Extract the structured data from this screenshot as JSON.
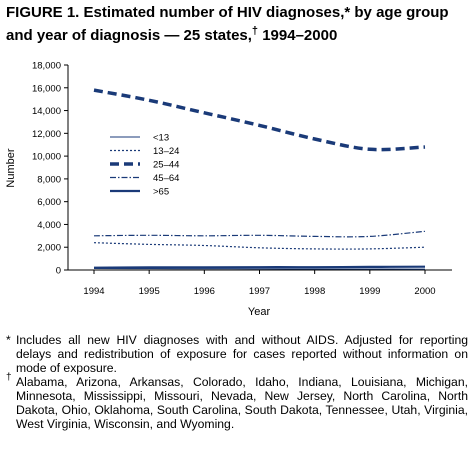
{
  "figure": {
    "title_line1": "FIGURE 1. Estimated number of HIV diagnoses,* by age group",
    "title_line2_a": "and year of diagnosis — 25 states,",
    "title_line2_dagger": "†",
    "title_line2_b": " 1994–2000"
  },
  "chart_data": {
    "type": "line",
    "x": [
      1994,
      1995,
      1996,
      1997,
      1998,
      1999,
      2000
    ],
    "xlabel": "Year",
    "ylabel": "Number",
    "ylim": [
      0,
      18000
    ],
    "yticks": [
      0,
      2000,
      4000,
      6000,
      8000,
      10000,
      12000,
      14000,
      16000,
      18000
    ],
    "ytick_labels": [
      "0",
      "2,000",
      "4,000",
      "6,000",
      "8,000",
      "10,000",
      "12,000",
      "14,000",
      "16,000",
      "18,000"
    ],
    "xtick_labels": [
      "1994",
      "1995",
      "1996",
      "1997",
      "1998",
      "1999",
      "2000"
    ],
    "grid": false,
    "legend_position": "middle-left",
    "series": [
      {
        "name": "<13",
        "style": "solid-thin",
        "values": [
          130,
          120,
          110,
          100,
          90,
          90,
          80
        ]
      },
      {
        "name": "13–24",
        "style": "dotted",
        "values": [
          2400,
          2250,
          2150,
          1950,
          1850,
          1850,
          2000
        ]
      },
      {
        "name": "25–44",
        "style": "dashed-thick",
        "values": [
          15800,
          14900,
          13800,
          12700,
          11500,
          10600,
          10800
        ]
      },
      {
        "name": "45–64",
        "style": "dash-dot",
        "values": [
          3000,
          3050,
          3000,
          3050,
          2950,
          2950,
          3400
        ]
      },
      {
        "name": ">65",
        "style": "solid",
        "values": [
          200,
          230,
          240,
          250,
          250,
          270,
          290
        ]
      }
    ]
  },
  "footnotes": {
    "asterisk_mark": "*",
    "asterisk_text": "Includes all new HIV diagnoses with and without AIDS. Adjusted for reporting delays and redistribution of exposure for cases reported without information on mode of exposure.",
    "dagger_mark": "†",
    "dagger_text": "Alabama, Arizona, Arkansas, Colorado, Idaho, Indiana, Louisiana, Michigan, Minnesota, Mississippi, Missouri, Nevada, New Jersey, North Carolina, North Dakota, Ohio, Oklahoma, South Carolina, South Dakota, Tennessee, Utah, Virginia, West Virginia, Wisconsin, and Wyoming."
  },
  "colors": {
    "series_line": "#1a3a78",
    "axis": "#000000",
    "background": "#ffffff"
  }
}
